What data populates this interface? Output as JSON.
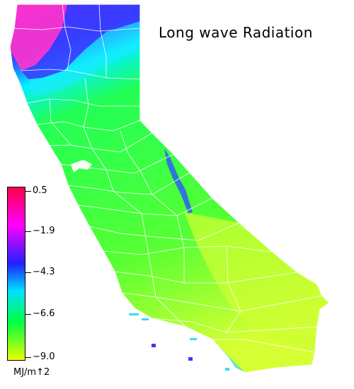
{
  "title": "Long wave Radiation",
  "legend": {
    "units": "MJ/m↑2",
    "labels": [
      "0.5",
      "−1.9",
      "−4.3",
      "−6.6",
      "−9.0"
    ],
    "colors": [
      "#ff0044",
      "#ff00ff",
      "#1a1aff",
      "#00e0ff",
      "#00ff44",
      "#e8ff00"
    ]
  },
  "map_colors": {
    "north_coast": "#ff33cc",
    "north_mountains": "#3a3aff",
    "central": "#33ff33",
    "south": "#c8ff33",
    "water": "#33ddff",
    "borders": "#ffffff"
  }
}
